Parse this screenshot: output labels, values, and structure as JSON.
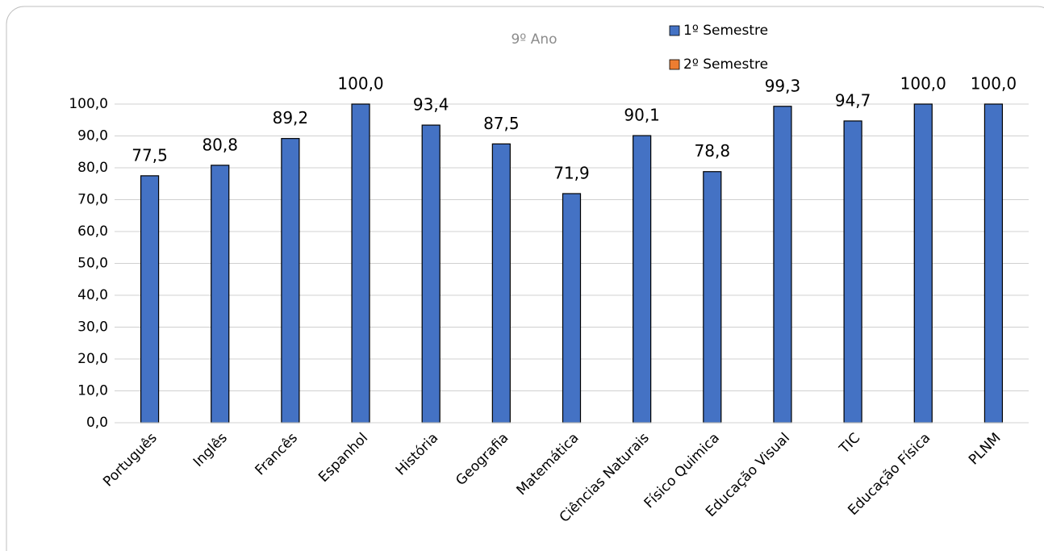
{
  "chart_data": {
    "type": "bar",
    "title": "9º Ano",
    "categories": [
      "Português",
      "Inglês",
      "Francês",
      "Espanhol",
      "História",
      "Geografia",
      "Matemática",
      "Ciências Naturais",
      "Físico Quimica",
      "Educação Visual",
      "TIC",
      "Educação Física",
      "PLNM"
    ],
    "series": [
      {
        "name": "1º Semestre",
        "color": "#4472c4",
        "values": [
          77.5,
          80.8,
          89.2,
          100.0,
          93.4,
          87.5,
          71.9,
          90.1,
          78.8,
          99.3,
          94.7,
          100.0,
          100.0
        ],
        "value_labels": [
          "77,5",
          "80,8",
          "89,2",
          "100,0",
          "93,4",
          "87,5",
          "71,9",
          "90,1",
          "78,8",
          "99,3",
          "94,7",
          "100,0",
          "100,0"
        ]
      },
      {
        "name": "2º Semestre",
        "color": "#ed7d31",
        "values": [
          null,
          null,
          null,
          null,
          null,
          null,
          null,
          null,
          null,
          null,
          null,
          null,
          null
        ]
      }
    ],
    "ylim": [
      0,
      100
    ],
    "yticks": [
      {
        "value": 0,
        "label": "0,0"
      },
      {
        "value": 10,
        "label": "10,0"
      },
      {
        "value": 20,
        "label": "20,0"
      },
      {
        "value": 30,
        "label": "30,0"
      },
      {
        "value": 40,
        "label": "40,0"
      },
      {
        "value": 50,
        "label": "50,0"
      },
      {
        "value": 60,
        "label": "60,0"
      },
      {
        "value": 70,
        "label": "70,0"
      },
      {
        "value": 80,
        "label": "80,0"
      },
      {
        "value": 90,
        "label": "90,0"
      },
      {
        "value": 100,
        "label": "100,0"
      }
    ],
    "grid": true
  }
}
